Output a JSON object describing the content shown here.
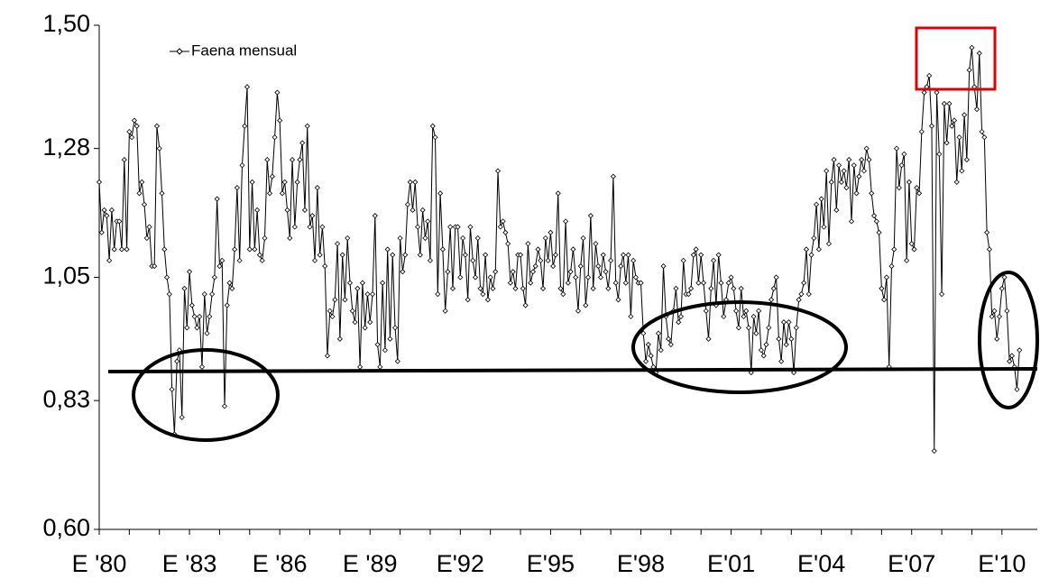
{
  "chart_data": {
    "type": "line",
    "categories": [
      "E '80",
      null,
      null,
      null,
      null,
      null,
      null,
      null,
      null,
      null,
      null,
      null,
      null,
      null,
      null,
      null,
      null,
      null,
      null,
      null,
      null,
      null,
      null,
      null,
      null,
      null,
      null,
      null,
      null,
      null,
      null,
      null,
      null,
      null,
      null,
      null,
      "E '83",
      null,
      null,
      null,
      null,
      null,
      null,
      null,
      null,
      null,
      null,
      null,
      null,
      null,
      null,
      null,
      null,
      null,
      null,
      null,
      null,
      null,
      null,
      null,
      null,
      null,
      null,
      null,
      null,
      null,
      null,
      null,
      null,
      null,
      null,
      null,
      "E '86",
      null,
      null,
      null,
      null,
      null,
      null,
      null,
      null,
      null,
      null,
      null,
      null,
      null,
      null,
      null,
      null,
      null,
      null,
      null,
      null,
      null,
      null,
      null,
      null,
      null,
      null,
      null,
      null,
      null,
      null,
      null,
      null,
      null,
      null,
      null,
      "E '89",
      null,
      null,
      null,
      null,
      null,
      null,
      null,
      null,
      null,
      null,
      null,
      null,
      null,
      null,
      null,
      null,
      null,
      null,
      null,
      null,
      null,
      null,
      null,
      null,
      null,
      null,
      null,
      null,
      null,
      null,
      null,
      null,
      null,
      null,
      null,
      "E'92",
      null,
      null,
      null,
      null,
      null,
      null,
      null,
      null,
      null,
      null,
      null,
      null,
      null,
      null,
      null,
      null,
      null,
      null,
      null,
      null,
      null,
      null,
      null,
      null,
      null,
      null,
      null,
      null,
      null,
      null,
      null,
      null,
      null,
      null,
      null,
      "E'95",
      null,
      null,
      null,
      null,
      null,
      null,
      null,
      null,
      null,
      null,
      null,
      null,
      null,
      null,
      null,
      null,
      null,
      null,
      null,
      null,
      null,
      null,
      null,
      null,
      null,
      null,
      null,
      null,
      null,
      null,
      null,
      null,
      null,
      null,
      null,
      "E'98",
      null,
      null,
      null,
      null,
      null,
      null,
      null,
      null,
      null,
      null,
      null,
      null,
      null,
      null,
      null,
      null,
      null,
      null,
      null,
      null,
      null,
      null,
      null,
      null,
      null,
      null,
      null,
      null,
      null,
      null,
      null,
      null,
      null,
      null,
      null,
      "E'01",
      null,
      null,
      null,
      null,
      null,
      null,
      null,
      null,
      null,
      null,
      null,
      null,
      null,
      null,
      null,
      null,
      null,
      null,
      null,
      null,
      null,
      null,
      null,
      null,
      null,
      null,
      null,
      null,
      null,
      null,
      null,
      null,
      null,
      null,
      null,
      "E'04",
      null,
      null,
      null,
      null,
      null,
      null,
      null,
      null,
      null,
      null,
      null,
      null,
      null,
      null,
      null,
      null,
      null,
      null,
      null,
      null,
      null,
      null,
      null,
      null,
      null,
      null,
      null,
      null,
      null,
      null,
      null,
      null,
      null,
      null,
      null,
      "E'07",
      null,
      null,
      null,
      null,
      null,
      null,
      null,
      null,
      null,
      null,
      null,
      null,
      null,
      null,
      null,
      null,
      null,
      null,
      null,
      null,
      null,
      null,
      null,
      null,
      null,
      null,
      null,
      null,
      null,
      null,
      null,
      null,
      null,
      null,
      null,
      "E'10",
      null,
      null,
      null,
      null,
      null,
      null,
      null
    ],
    "series": [
      {
        "name": "Faena mensual",
        "color": "#000000",
        "values": [
          1.22,
          1.13,
          1.17,
          1.16,
          1.08,
          1.17,
          1.1,
          1.15,
          1.15,
          1.1,
          1.26,
          1.1,
          1.31,
          1.3,
          1.33,
          1.32,
          1.2,
          1.22,
          1.18,
          1.12,
          1.14,
          1.07,
          1.07,
          1.32,
          1.28,
          1.2,
          1.1,
          1.05,
          1.02,
          0.85,
          0.77,
          0.9,
          0.92,
          0.8,
          1.03,
          0.96,
          1.06,
          1.0,
          0.98,
          0.96,
          0.98,
          0.89,
          1.02,
          0.95,
          0.98,
          1.02,
          1.05,
          1.19,
          1.07,
          1.08,
          0.82,
          1.0,
          1.04,
          1.03,
          1.1,
          1.21,
          1.08,
          1.25,
          1.32,
          1.39,
          1.1,
          1.22,
          1.1,
          1.17,
          1.09,
          1.08,
          1.12,
          1.26,
          1.2,
          1.23,
          1.3,
          1.38,
          1.33,
          1.2,
          1.22,
          1.17,
          1.12,
          1.26,
          1.14,
          1.22,
          1.26,
          1.29,
          1.17,
          1.32,
          1.14,
          1.16,
          1.08,
          1.21,
          1.09,
          1.14,
          1.07,
          0.91,
          0.99,
          0.98,
          1.01,
          1.11,
          0.94,
          1.09,
          1.01,
          1.12,
          1.04,
          0.99,
          0.97,
          1.03,
          0.89,
          1.04,
          0.96,
          1.02,
          0.97,
          1.02,
          1.16,
          0.93,
          0.89,
          1.04,
          0.92,
          1.1,
          0.94,
          1.09,
          0.96,
          0.9,
          1.12,
          1.06,
          1.09,
          1.18,
          1.22,
          1.17,
          1.22,
          1.14,
          1.09,
          1.17,
          1.12,
          1.15,
          1.08,
          1.32,
          1.3,
          1.02,
          1.2,
          1.1,
          0.99,
          1.06,
          1.14,
          1.03,
          1.14,
          1.14,
          1.05,
          1.12,
          1.09,
          1.01,
          1.14,
          1.08,
          1.05,
          1.12,
          1.03,
          1.02,
          1.09,
          1.01,
          1.05,
          1.03,
          1.06,
          1.24,
          1.14,
          1.15,
          1.13,
          1.11,
          1.04,
          1.06,
          1.03,
          1.09,
          1.09,
          1.03,
          1.0,
          1.11,
          1.04,
          1.06,
          1.07,
          1.1,
          1.08,
          1.03,
          1.12,
          1.08,
          1.13,
          1.07,
          1.09,
          1.2,
          1.03,
          1.02,
          1.15,
          1.04,
          1.06,
          1.1,
          1.05,
          0.99,
          1.07,
          1.12,
          1.0,
          1.05,
          1.16,
          1.03,
          1.11,
          1.07,
          1.05,
          1.09,
          1.06,
          1.03,
          1.08,
          1.23,
          1.04,
          1.01,
          1.07,
          1.09,
          1.04,
          1.09,
          0.98,
          1.08,
          1.05,
          1.04,
          1.04,
          0.95,
          0.9,
          0.93,
          0.91,
          0.89,
          0.88,
          0.95,
          0.92,
          1.07,
          0.98,
          0.94,
          0.93,
          0.99,
          1.03,
          0.97,
          0.98,
          1.08,
          1.02,
          1.02,
          1.03,
          1.09,
          1.1,
          1.04,
          1.09,
          1.04,
          0.99,
          0.94,
          1.03,
          1.08,
          1.0,
          1.09,
          1.04,
          0.98,
          1.01,
          1.04,
          1.05,
          1.03,
          0.99,
          0.96,
          1.03,
          0.98,
          0.99,
          0.96,
          0.88,
          0.98,
          0.95,
          0.99,
          0.92,
          0.91,
          0.93,
          0.96,
          1.01,
          1.03,
          1.05,
          0.94,
          0.9,
          0.97,
          0.93,
          0.97,
          0.94,
          0.88,
          0.96,
          1.01,
          1.02,
          1.04,
          1.1,
          1.02,
          1.09,
          1.12,
          1.18,
          1.1,
          1.19,
          1.14,
          1.24,
          1.11,
          1.22,
          1.26,
          1.17,
          1.25,
          1.22,
          1.24,
          1.21,
          1.26,
          1.15,
          1.25,
          1.2,
          1.23,
          1.26,
          1.24,
          1.28,
          1.26,
          1.2,
          1.16,
          1.15,
          1.13,
          1.03,
          1.01,
          1.05,
          0.89,
          1.07,
          1.1,
          1.28,
          1.21,
          1.25,
          1.27,
          1.08,
          1.22,
          1.11,
          1.1,
          1.21,
          1.2,
          1.31,
          1.38,
          1.39,
          1.41,
          1.32,
          0.74,
          1.38,
          1.27,
          1.02,
          1.36,
          1.29,
          1.36,
          1.32,
          1.33,
          1.22,
          1.3,
          1.24,
          1.34,
          1.26,
          1.42,
          1.46,
          1.39,
          1.35,
          1.45,
          1.31,
          1.3,
          1.13,
          1.1,
          0.98,
          0.99,
          0.94,
          0.98,
          1.03,
          1.05,
          0.99,
          0.9,
          0.91,
          0.89,
          0.85,
          0.92
        ]
      }
    ],
    "ylim": [
      0.6,
      1.5
    ],
    "yticks": [
      {
        "value": 0.6,
        "label": "0,60"
      },
      {
        "value": 0.83,
        "label": "0,83"
      },
      {
        "value": 1.05,
        "label": "1,05"
      },
      {
        "value": 1.28,
        "label": "1,28"
      },
      {
        "value": 1.5,
        "label": "1,50"
      }
    ],
    "legend": "top-left",
    "grid": false
  }
}
